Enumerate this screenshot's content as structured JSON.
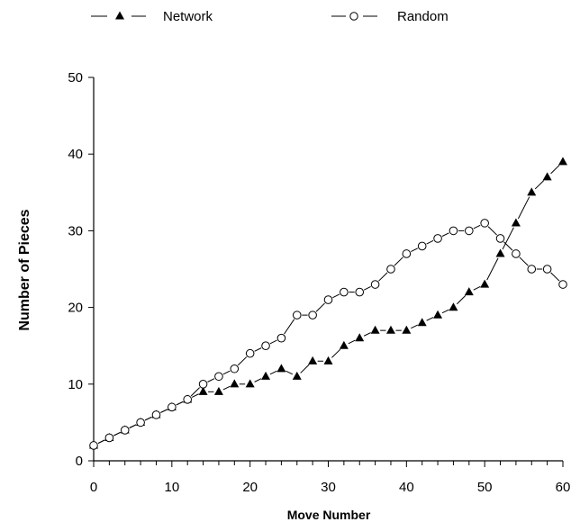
{
  "chart_data": {
    "type": "line",
    "xlabel": "Move Number",
    "ylabel": "Number of Pieces",
    "xlim": [
      0,
      60
    ],
    "ylim": [
      0,
      50
    ],
    "x_ticks": [
      "0",
      "10",
      "20",
      "30",
      "40",
      "50",
      "60"
    ],
    "y_ticks": [
      "0",
      "10",
      "20",
      "30",
      "40",
      "50"
    ],
    "grid": false,
    "legend_position": "top",
    "x": [
      0,
      2,
      4,
      6,
      8,
      10,
      12,
      14,
      16,
      18,
      20,
      22,
      24,
      26,
      28,
      30,
      32,
      34,
      36,
      38,
      40,
      42,
      44,
      46,
      48,
      50,
      52,
      54,
      56,
      58,
      60
    ],
    "series": [
      {
        "name": "Network",
        "marker": "filled-triangle",
        "color": "#000000",
        "values": [
          2,
          3,
          4,
          5,
          6,
          7,
          8,
          9,
          9,
          10,
          10,
          11,
          12,
          11,
          13,
          13,
          15,
          16,
          17,
          17,
          17,
          18,
          19,
          20,
          22,
          23,
          27,
          31,
          35,
          37,
          39
        ]
      },
      {
        "name": "Random",
        "marker": "open-circle",
        "color": "#000000",
        "values": [
          2,
          3,
          4,
          5,
          6,
          7,
          8,
          10,
          11,
          12,
          14,
          15,
          16,
          19,
          19,
          21,
          22,
          22,
          23,
          25,
          27,
          28,
          29,
          30,
          30,
          31,
          29,
          27,
          25,
          25,
          23
        ]
      }
    ]
  }
}
